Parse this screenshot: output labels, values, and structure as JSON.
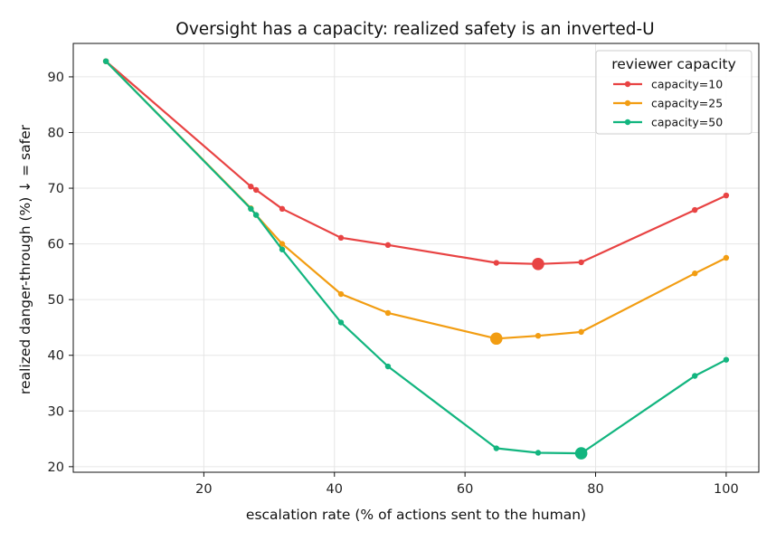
{
  "chart_data": {
    "type": "line",
    "title": "Oversight has a capacity: realized safety is an inverted-U",
    "xlabel": "escalation rate (% of actions sent to the human)",
    "ylabel": "realized danger-through (%)  ↓ = safer",
    "xlim": [
      0,
      105
    ],
    "ylim": [
      19,
      96
    ],
    "xticks": [
      20,
      40,
      60,
      80,
      100
    ],
    "yticks": [
      20,
      30,
      40,
      50,
      60,
      70,
      80,
      90
    ],
    "grid": true,
    "legend": {
      "title": "reviewer capacity",
      "placement": "top-right"
    },
    "series": [
      {
        "name": "capacity=10",
        "color": "#e84343",
        "x": [
          5,
          27.2,
          28,
          32,
          41,
          48.2,
          64.8,
          71.2,
          77.8,
          95.2,
          100
        ],
        "y": [
          92.8,
          70.3,
          69.7,
          66.3,
          61.1,
          59.8,
          56.6,
          56.4,
          56.7,
          66.1,
          68.7
        ],
        "min_index": 7
      },
      {
        "name": "capacity=25",
        "color": "#f29d12",
        "x": [
          5,
          27.2,
          28,
          32,
          41,
          48.2,
          64.8,
          71.2,
          77.8,
          95.2,
          100
        ],
        "y": [
          92.8,
          66.4,
          65.2,
          60.0,
          51.0,
          47.6,
          43.0,
          43.5,
          44.2,
          54.7,
          57.5
        ],
        "min_index": 6
      },
      {
        "name": "capacity=50",
        "color": "#12b57f",
        "x": [
          5,
          27.2,
          28,
          32,
          41,
          48.2,
          64.8,
          71.2,
          77.8,
          95.2,
          100
        ],
        "y": [
          92.8,
          66.3,
          65.2,
          59.0,
          45.9,
          38.0,
          23.3,
          22.5,
          22.4,
          36.3,
          39.2
        ],
        "min_index": 8
      }
    ]
  }
}
